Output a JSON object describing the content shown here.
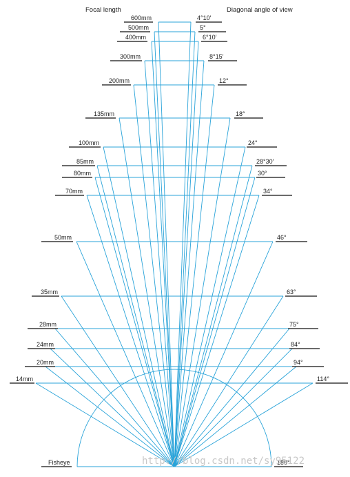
{
  "header": {
    "focal_length_title": "Focal length",
    "angle_title": "Diagonal angle of view"
  },
  "lenses": [
    {
      "focal": "600mm",
      "angle": "4°10′"
    },
    {
      "focal": "500mm",
      "angle": "5°"
    },
    {
      "focal": "400mm",
      "angle": "6°10′"
    },
    {
      "focal": "300mm",
      "angle": "8°15′"
    },
    {
      "focal": "200mm",
      "angle": "12°"
    },
    {
      "focal": "135mm",
      "angle": "18°"
    },
    {
      "focal": "100mm",
      "angle": "24°"
    },
    {
      "focal": "85mm",
      "angle": "28°30′"
    },
    {
      "focal": "80mm",
      "angle": "30°"
    },
    {
      "focal": "70mm",
      "angle": "34°"
    },
    {
      "focal": "50mm",
      "angle": "46°"
    },
    {
      "focal": "35mm",
      "angle": "63°"
    },
    {
      "focal": "28mm",
      "angle": "75°"
    },
    {
      "focal": "24mm",
      "angle": "84°"
    },
    {
      "focal": "20mm",
      "angle": "94°"
    },
    {
      "focal": "14mm",
      "angle": "114°"
    }
  ],
  "fisheye": {
    "focal": "Fisheye",
    "angle": "180°"
  },
  "watermark": "http://blog.csdn.net/sy95122",
  "colors": {
    "ray": "#29a3d9",
    "text": "#222222"
  }
}
